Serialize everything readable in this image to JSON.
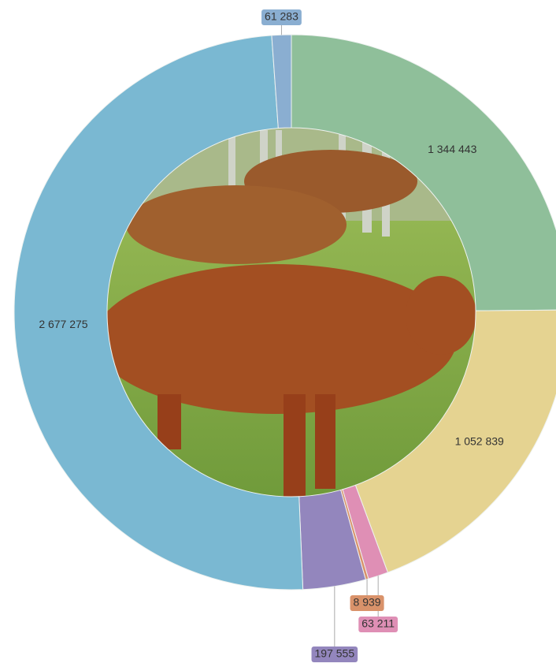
{
  "chart_data": {
    "type": "donut",
    "values": [
      1344443,
      1052839,
      63211,
      8939,
      197555,
      2677275,
      61283
    ],
    "value_labels": [
      "1 344 443",
      "1 052 839",
      "63 211",
      "8 939",
      "197 555",
      "2 677 275",
      "61 283"
    ],
    "colors": [
      "#8fbf9a",
      "#e5d391",
      "#df8fb5",
      "#d9926a",
      "#9386bd",
      "#7ab8d2",
      "#8aaed1"
    ]
  }
}
